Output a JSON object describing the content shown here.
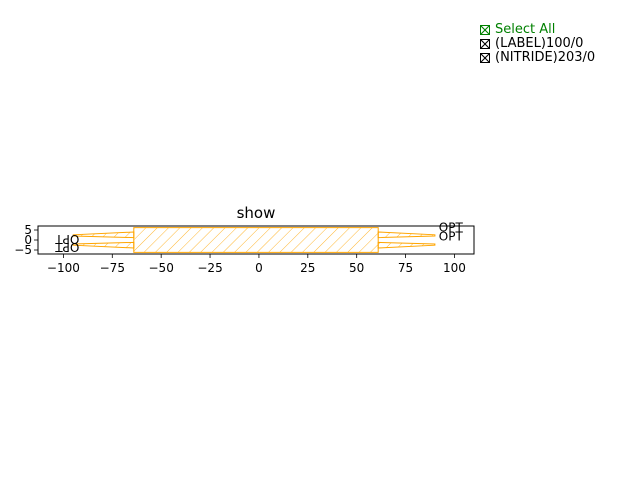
{
  "chart_data": {
    "type": "polygon",
    "title": "show",
    "xlabel": "",
    "ylabel": "",
    "xlim": [
      -113,
      110
    ],
    "ylim": [
      -7,
      7
    ],
    "xticks": [
      -100,
      -75,
      -50,
      -25,
      0,
      25,
      50,
      75,
      100
    ],
    "xtick_labels": [
      "−100",
      "−75",
      "−50",
      "−25",
      "0",
      "25",
      "50",
      "75",
      "100"
    ],
    "yticks": [
      5,
      0,
      -5
    ],
    "ytick_labels": [
      "5",
      "0",
      "−5"
    ],
    "grid": false,
    "color": "#ffa500",
    "polygons": [
      {
        "name": "body",
        "hatched": true,
        "points": [
          [
            -64,
            6.2
          ],
          [
            61,
            6.2
          ],
          [
            61,
            -6.2
          ],
          [
            -64,
            -6.2
          ]
        ]
      },
      {
        "name": "left-upper-taper",
        "hatched": true,
        "points": [
          [
            -64,
            4
          ],
          [
            -95,
            2.6
          ],
          [
            -95,
            2.0
          ],
          [
            -64,
            1.2
          ]
        ]
      },
      {
        "name": "left-lower-taper",
        "hatched": true,
        "points": [
          [
            -64,
            -1.2
          ],
          [
            -95,
            -2.0
          ],
          [
            -95,
            -2.6
          ],
          [
            -64,
            -4
          ]
        ]
      },
      {
        "name": "right-upper-taper",
        "hatched": true,
        "points": [
          [
            61,
            4
          ],
          [
            90,
            2.6
          ],
          [
            90,
            2.0
          ],
          [
            61,
            1.2
          ]
        ]
      },
      {
        "name": "right-lower-taper",
        "hatched": true,
        "points": [
          [
            61,
            -1.2
          ],
          [
            90,
            -2.0
          ],
          [
            90,
            -2.6
          ],
          [
            61,
            -4
          ]
        ]
      }
    ],
    "port_labels": [
      {
        "text": "OPT",
        "x": 92,
        "y": 4.2,
        "anchor": "start",
        "rotate": 0
      },
      {
        "text": "OPT",
        "x": 92,
        "y": -0.2,
        "anchor": "start",
        "rotate": 0
      },
      {
        "text": "OPT",
        "x": -98,
        "y": -1.5,
        "anchor": "middle",
        "rotate": 180
      },
      {
        "text": "OPT",
        "x": -98,
        "y": -5.4,
        "anchor": "middle",
        "rotate": 180
      }
    ]
  },
  "legend": {
    "items": [
      {
        "label": "Select All",
        "color": "#008000",
        "checked": true
      },
      {
        "label": "(LABEL)100/0",
        "color": "#000000",
        "checked": true
      },
      {
        "label": "(NITRIDE)203/0",
        "color": "#000000",
        "checked": true
      }
    ]
  }
}
